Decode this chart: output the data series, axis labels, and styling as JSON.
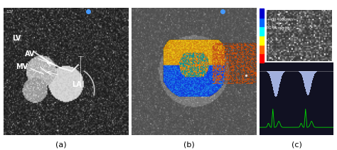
{
  "figure_width": 4.74,
  "figure_height": 2.11,
  "dpi": 100,
  "bg_color": "#ffffff",
  "panels": [
    "(a)",
    "(b)",
    "(c)"
  ],
  "panel_a": {
    "bg_color": "#000000",
    "label_color": "#ffffff",
    "labels": [
      "LA",
      "MV",
      "AV",
      "LV"
    ],
    "arrow_color": "#ffffff"
  },
  "panel_b": {
    "bg_color": "#000000",
    "has_color_doppler": true
  },
  "panel_c": {
    "bg_color": "#1a1a2e",
    "has_ecg": true,
    "ecg_color": "#00dd00",
    "text_color": "#ffffff"
  },
  "label_fontsize": 7,
  "panel_label_fontsize": 8
}
